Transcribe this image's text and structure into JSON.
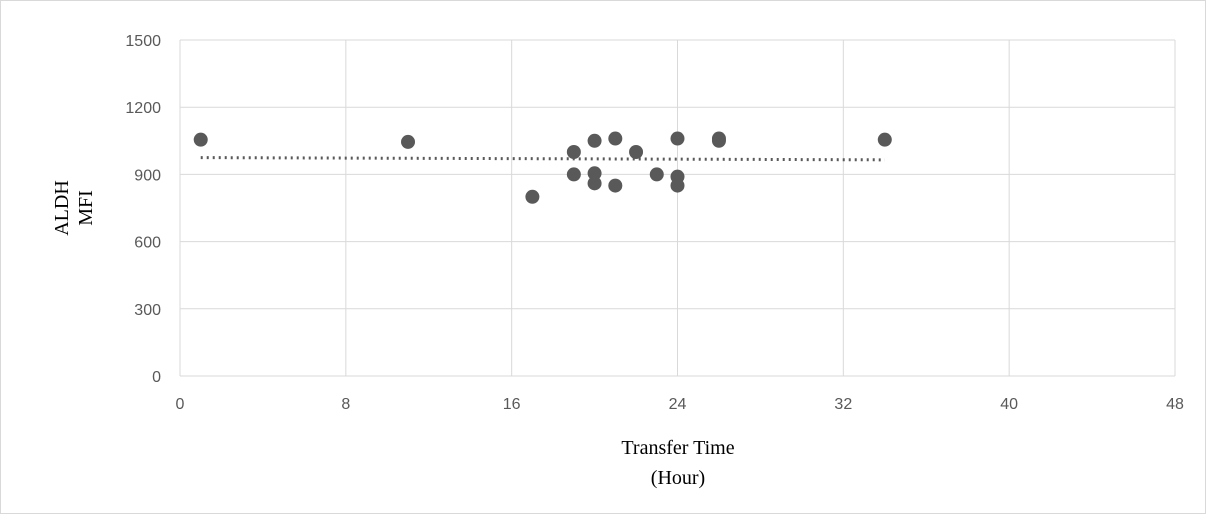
{
  "chart_data": {
    "type": "scatter",
    "title": "",
    "xlabel": [
      "Transfer Time",
      "(Hour)"
    ],
    "ylabel": [
      "ALDH",
      "MFI"
    ],
    "xlim": [
      0,
      48
    ],
    "ylim": [
      0,
      1500
    ],
    "x_ticks": [
      "0",
      "8",
      "16",
      "24",
      "32",
      "40",
      "48"
    ],
    "y_ticks": [
      "0",
      "300",
      "600",
      "900",
      "1200",
      "1500"
    ],
    "grid": true,
    "series": [
      {
        "points": [
          {
            "x": 1,
            "y": 1055
          },
          {
            "x": 11,
            "y": 1045
          },
          {
            "x": 17,
            "y": 800
          },
          {
            "x": 19,
            "y": 1000
          },
          {
            "x": 19,
            "y": 900
          },
          {
            "x": 20,
            "y": 1050
          },
          {
            "x": 20,
            "y": 905
          },
          {
            "x": 20,
            "y": 860
          },
          {
            "x": 21,
            "y": 1060
          },
          {
            "x": 21,
            "y": 850
          },
          {
            "x": 22,
            "y": 1000
          },
          {
            "x": 23,
            "y": 900
          },
          {
            "x": 24,
            "y": 1060
          },
          {
            "x": 24,
            "y": 890
          },
          {
            "x": 24,
            "y": 850
          },
          {
            "x": 26,
            "y": 1060
          },
          {
            "x": 26,
            "y": 1050
          },
          {
            "x": 34,
            "y": 1055
          }
        ],
        "color": "#595959"
      }
    ],
    "trendline": {
      "type": "linear",
      "x": [
        1,
        34
      ],
      "y": [
        975,
        965
      ],
      "style": "dotted",
      "color": "#595959"
    }
  }
}
